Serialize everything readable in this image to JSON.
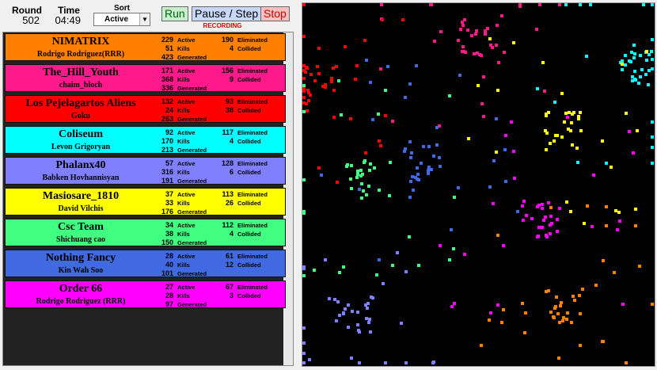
{
  "header": {
    "round_label": "Round",
    "round": 502,
    "time_label": "Time",
    "time": "04:49",
    "sort_label": "Sort",
    "sort_value": "Active",
    "buttons": [
      "Run",
      "Pause / Step",
      "Stop"
    ],
    "status": "RECORDING"
  },
  "stat_labels": {
    "active": "Active",
    "kills": "Kills",
    "generated": "Generated",
    "eliminated": "Eliminated",
    "collided": "Collided"
  },
  "teams": [
    {
      "name": "NIMATRIX",
      "player": "Rodrigo Rodriguez(RRR)",
      "active": 229,
      "kills": 51,
      "generated": 423,
      "eliminated": 190,
      "collided": 4,
      "color": "#ff8000"
    },
    {
      "name": "The_Hill_Youth",
      "player": "chaim_bloch",
      "active": 171,
      "kills": 368,
      "generated": 336,
      "eliminated": 156,
      "collided": 9,
      "color": "#ff1a8c"
    },
    {
      "name": "Los Pejelagartos Aliens",
      "player": "Goku",
      "active": 132,
      "kills": 24,
      "generated": 263,
      "eliminated": 93,
      "collided": 38,
      "color": "#ff0000"
    },
    {
      "name": "Coliseum",
      "player": "Levon Grigoryan",
      "active": 92,
      "kills": 170,
      "generated": 213,
      "eliminated": 117,
      "collided": 4,
      "color": "#00ffff"
    },
    {
      "name": "Phalanx40",
      "player": "Babken Hovhannisyan",
      "active": 57,
      "kills": 316,
      "generated": 191,
      "eliminated": 128,
      "collided": 6,
      "color": "#8080ff"
    },
    {
      "name": "Masiosare_1810",
      "player": "David Vilchis",
      "active": 37,
      "kills": 33,
      "generated": 176,
      "eliminated": 113,
      "collided": 26,
      "color": "#ffff00"
    },
    {
      "name": "Csc Team",
      "player": "Shichuang cao",
      "active": 34,
      "kills": 38,
      "generated": 150,
      "eliminated": 112,
      "collided": 4,
      "color": "#40ff80"
    },
    {
      "name": "Nothing Fancy",
      "player": "Kin Wah Soo",
      "active": 28,
      "kills": 40,
      "generated": 101,
      "eliminated": 61,
      "collided": 12,
      "color": "#4169e1"
    },
    {
      "name": "Order 66",
      "player": "Rodrigo Rodriguez (RRR)",
      "active": 27,
      "kills": 28,
      "generated": 97,
      "eliminated": 67,
      "collided": 3,
      "color": "#ff00ff"
    }
  ]
}
